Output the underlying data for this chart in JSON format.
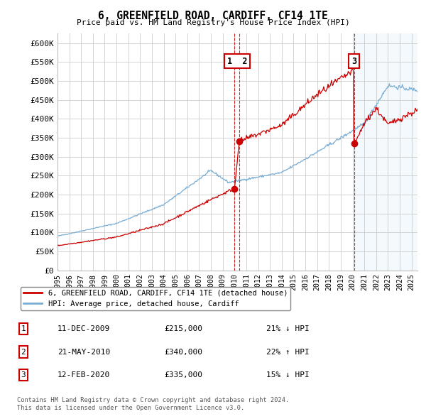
{
  "title": "6, GREENFIELD ROAD, CARDIFF, CF14 1TE",
  "subtitle": "Price paid vs. HM Land Registry's House Price Index (HPI)",
  "legend_label_red": "6, GREENFIELD ROAD, CARDIFF, CF14 1TE (detached house)",
  "legend_label_blue": "HPI: Average price, detached house, Cardiff",
  "ylabel_ticks": [
    "£0",
    "£50K",
    "£100K",
    "£150K",
    "£200K",
    "£250K",
    "£300K",
    "£350K",
    "£400K",
    "£450K",
    "£500K",
    "£550K",
    "£600K"
  ],
  "ytick_values": [
    0,
    50000,
    100000,
    150000,
    200000,
    250000,
    300000,
    350000,
    400000,
    450000,
    500000,
    550000,
    600000
  ],
  "xmin": 1995,
  "xmax": 2025.5,
  "ymin": 0,
  "ymax": 625000,
  "transactions": [
    {
      "num": 1,
      "date": "11-DEC-2009",
      "price": 215000,
      "price_str": "£215,000",
      "pct": "21%",
      "dir": "↓",
      "x_year": 2009.95
    },
    {
      "num": 2,
      "date": "21-MAY-2010",
      "price": 340000,
      "price_str": "£340,000",
      "pct": "22%",
      "dir": "↑",
      "x_year": 2010.38
    },
    {
      "num": 3,
      "date": "12-FEB-2020",
      "price": 335000,
      "price_str": "£335,000",
      "pct": "15%",
      "dir": "↓",
      "x_year": 2020.12
    }
  ],
  "footnote1": "Contains HM Land Registry data © Crown copyright and database right 2024.",
  "footnote2": "This data is licensed under the Open Government Licence v3.0.",
  "background_color": "#ffffff",
  "grid_color": "#cccccc",
  "red_color": "#cc0000",
  "blue_color": "#7aadd4",
  "dot_color": "#cc0000"
}
